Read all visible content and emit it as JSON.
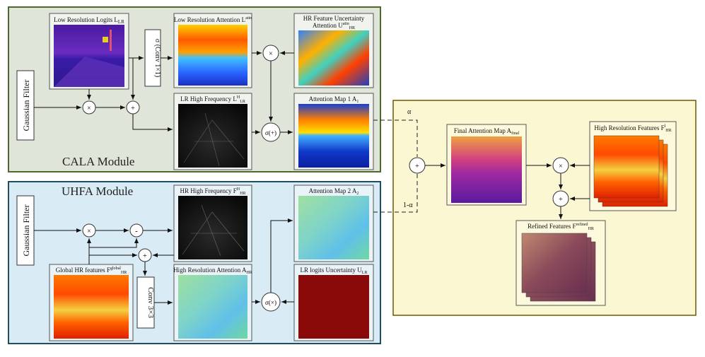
{
  "cala": {
    "title": "CALA Module",
    "gaussian": "Gaussian Filter",
    "lr_logits": "Low Resolution Logits L",
    "lr_logits_sub": "LR",
    "conv_sigma": "σ (Conv 1×1)",
    "lr_attention": "Low Resolution Attention L",
    "lr_attention_sup": "attn",
    "hr_unc_line1": "HR Feature Uncertainty",
    "hr_unc_line2": "Attention U",
    "hr_unc_sup": "attn",
    "hr_unc_sub": "HR",
    "lr_highfreq": "LR High Frequency L",
    "lr_highfreq_sup": "H",
    "lr_highfreq_sub": "LR",
    "attn_map1": "Attention Map 1 A",
    "attn_map1_sub": "1"
  },
  "uhfa": {
    "title": "UHFA Module",
    "gaussian": "Gaussian Filter",
    "hr_highfreq": "HR High Frequency F",
    "hr_highfreq_sup": "H",
    "hr_highfreq_sub": "HR",
    "attn_map2": "Attention Map 2 A",
    "attn_map2_sub": "2",
    "global_hr": "Global HR features F",
    "global_hr_sup": "global",
    "global_hr_sub": "HR",
    "conv3": "Conv 3×3",
    "hr_attention": "High Resolution Attention A",
    "hr_attention_sub": "HR",
    "lr_unc": "LR logits Uncertainty U",
    "lr_unc_sub": "LR"
  },
  "fusion": {
    "final_attn": "Final Attention Map A",
    "final_attn_sub": "final",
    "hr_features": "High Resolution Features F",
    "hr_features_sup": "l",
    "hr_features_sub": "HR",
    "refined": "Refined Features F",
    "refined_sup": "refined",
    "refined_sub": "HR",
    "alpha": "α",
    "one_minus_alpha": "1-α"
  },
  "ops": {
    "mul": "×",
    "add": "+",
    "sub": "-",
    "sigma_add": "σ(+)",
    "sigma_mul": "σ(×)"
  },
  "colors": {
    "cala_bg": "#dfe6d9",
    "cala_border": "#4d6a2a",
    "uhfa_bg": "#d9ebf4",
    "uhfa_border": "#1f4f5f",
    "fusion_bg": "#fbf7d2",
    "fusion_border": "#6b5a00"
  }
}
